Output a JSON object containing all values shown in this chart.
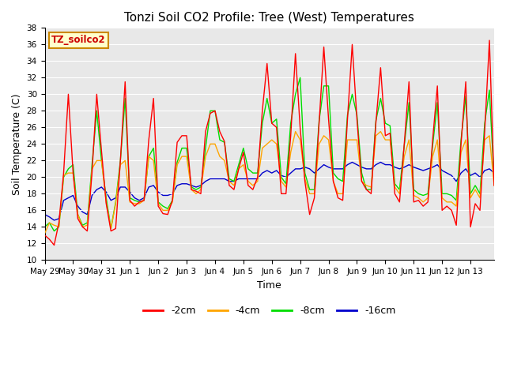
{
  "title": "Tonzi Soil CO2 Profile: Tree (West) Temperatures",
  "xlabel": "Time",
  "ylabel": "Soil Temperature (C)",
  "ylim": [
    10,
    38
  ],
  "yticks": [
    10,
    12,
    14,
    16,
    18,
    20,
    22,
    24,
    26,
    28,
    30,
    32,
    34,
    36,
    38
  ],
  "colors": {
    "-2cm": "#ff0000",
    "-4cm": "#ffa500",
    "-8cm": "#00dd00",
    "-16cm": "#0000cc"
  },
  "legend_label": "TZ_soilco2",
  "legend_box_facecolor": "#ffffcc",
  "legend_box_edgecolor": "#cc8800",
  "bg_color": "#e8e8e8",
  "grid_color": "#ffffff",
  "xtick_labels": [
    "May 29",
    "May 30",
    "May 31",
    "Jun 1",
    "Jun 2",
    "Jun 3",
    "Jun 4",
    "Jun 5",
    "Jun 6",
    "Jun 7",
    "Jun 8",
    "Jun 9",
    "Jun 10",
    "Jun 11",
    "Jun 12",
    "Jun 13"
  ],
  "n_days": 16,
  "pts_per_day": 6,
  "series_2cm": [
    13.0,
    12.5,
    11.8,
    14.5,
    20.5,
    30.0,
    20.5,
    15.0,
    14.0,
    13.5,
    20.5,
    30.0,
    23.2,
    16.8,
    13.5,
    13.8,
    22.0,
    31.5,
    17.2,
    16.5,
    17.0,
    17.2,
    24.5,
    29.5,
    16.5,
    15.6,
    15.5,
    17.2,
    24.2,
    25.0,
    25.0,
    18.5,
    18.3,
    18.0,
    25.5,
    27.7,
    28.0,
    25.5,
    24.3,
    19.0,
    18.5,
    21.0,
    23.0,
    19.0,
    18.5,
    20.0,
    28.0,
    33.7,
    26.5,
    26.0,
    18.0,
    18.0,
    25.0,
    34.9,
    25.9,
    19.5,
    15.5,
    17.5,
    26.5,
    35.7,
    27.0,
    19.5,
    17.5,
    17.2,
    27.0,
    36.0,
    27.0,
    19.5,
    18.5,
    18.0,
    26.5,
    33.2,
    25.0,
    25.3,
    18.0,
    17.0,
    24.0,
    31.5,
    17.0,
    17.2,
    16.5,
    17.0,
    24.5,
    31.0,
    16.0,
    16.5,
    16.0,
    14.2,
    24.0,
    31.5,
    14.0,
    16.8,
    16.0,
    25.5,
    36.5,
    19.0
  ],
  "series_4cm": [
    13.2,
    14.5,
    14.2,
    14.0,
    20.2,
    20.5,
    20.5,
    15.5,
    14.0,
    14.2,
    21.0,
    22.0,
    22.0,
    17.0,
    13.8,
    16.8,
    21.5,
    22.0,
    17.0,
    16.8,
    16.8,
    17.2,
    22.5,
    22.0,
    16.8,
    16.0,
    16.0,
    17.0,
    21.5,
    22.5,
    22.5,
    18.5,
    18.0,
    18.5,
    22.5,
    24.0,
    24.0,
    22.5,
    22.0,
    19.5,
    19.0,
    21.0,
    21.5,
    19.5,
    19.0,
    19.5,
    23.5,
    24.0,
    24.5,
    24.0,
    19.5,
    18.8,
    23.0,
    25.5,
    24.5,
    19.8,
    18.0,
    18.0,
    24.0,
    25.0,
    24.5,
    19.5,
    18.0,
    18.0,
    24.5,
    24.5,
    24.5,
    19.5,
    19.0,
    18.8,
    25.0,
    25.5,
    24.5,
    24.5,
    18.8,
    18.0,
    22.5,
    24.5,
    17.8,
    17.5,
    17.0,
    17.5,
    22.5,
    24.5,
    17.5,
    17.0,
    17.0,
    16.5,
    23.0,
    24.5,
    17.5,
    18.5,
    17.5,
    24.5,
    25.0,
    19.0
  ],
  "series_8cm": [
    14.0,
    14.5,
    13.5,
    14.0,
    20.0,
    21.0,
    21.5,
    15.5,
    14.2,
    14.5,
    21.5,
    28.0,
    22.0,
    17.5,
    13.8,
    17.0,
    22.0,
    29.5,
    17.5,
    17.2,
    17.0,
    17.2,
    22.5,
    23.5,
    17.0,
    16.5,
    16.2,
    17.2,
    21.8,
    23.5,
    23.5,
    18.8,
    18.5,
    18.8,
    23.5,
    28.0,
    28.0,
    24.5,
    24.2,
    19.8,
    19.5,
    21.5,
    23.5,
    21.0,
    20.5,
    20.5,
    26.5,
    29.5,
    26.5,
    27.0,
    20.0,
    19.2,
    26.5,
    30.0,
    32.0,
    20.5,
    18.5,
    18.5,
    26.8,
    31.0,
    31.0,
    20.5,
    19.8,
    19.5,
    27.5,
    30.0,
    27.5,
    20.5,
    18.5,
    18.5,
    26.8,
    29.5,
    26.5,
    26.2,
    19.2,
    18.5,
    23.8,
    29.0,
    18.5,
    18.0,
    17.8,
    18.0,
    23.8,
    29.0,
    18.0,
    18.0,
    17.8,
    17.2,
    24.5,
    29.8,
    18.0,
    19.0,
    18.0,
    26.5,
    30.5,
    19.5
  ],
  "series_16cm": [
    15.5,
    15.2,
    14.8,
    15.0,
    17.2,
    17.5,
    17.8,
    16.5,
    15.8,
    15.5,
    17.8,
    18.5,
    18.8,
    18.2,
    17.2,
    17.5,
    18.8,
    18.8,
    18.2,
    17.5,
    17.2,
    17.5,
    18.8,
    19.0,
    18.2,
    17.8,
    17.8,
    18.0,
    19.0,
    19.2,
    19.2,
    19.0,
    18.8,
    19.0,
    19.5,
    19.8,
    19.8,
    19.8,
    19.8,
    19.5,
    19.5,
    19.8,
    19.8,
    19.8,
    19.8,
    19.8,
    20.5,
    20.8,
    20.5,
    20.8,
    20.2,
    20.0,
    20.5,
    21.0,
    21.0,
    21.2,
    21.0,
    20.5,
    21.0,
    21.5,
    21.2,
    21.0,
    21.0,
    21.0,
    21.5,
    21.8,
    21.5,
    21.2,
    21.0,
    21.0,
    21.5,
    21.8,
    21.5,
    21.5,
    21.2,
    21.0,
    21.2,
    21.5,
    21.2,
    21.0,
    20.8,
    21.0,
    21.2,
    21.5,
    20.8,
    20.5,
    20.2,
    19.5,
    20.5,
    21.0,
    20.2,
    20.5,
    20.0,
    20.8,
    21.0,
    20.5
  ]
}
